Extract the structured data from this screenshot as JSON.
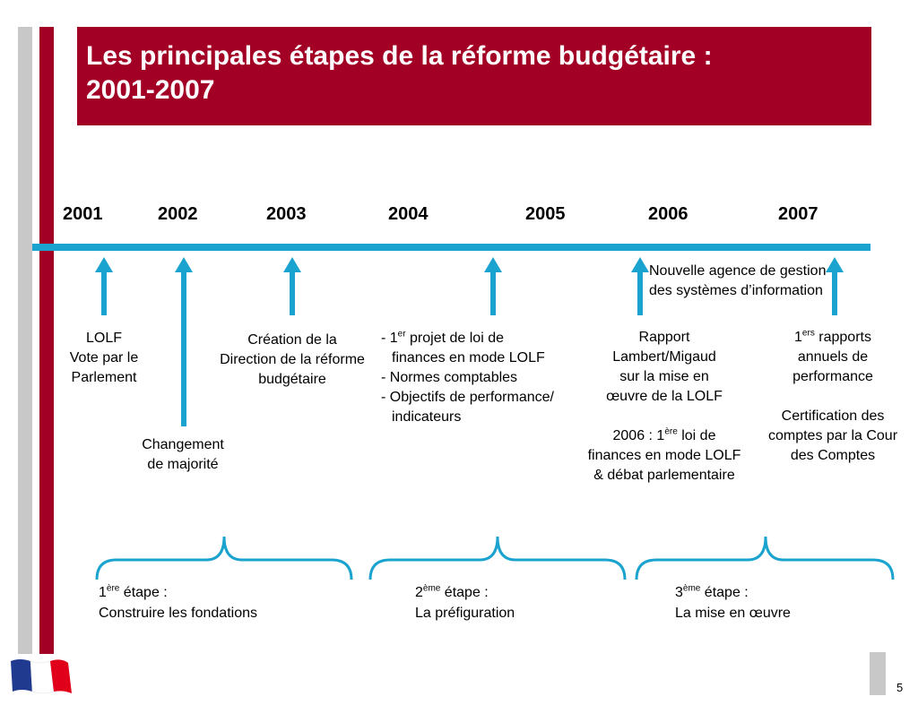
{
  "title": "Les principales étapes de la réforme budgétaire :\n2001-2007",
  "years": [
    "2001",
    "2002",
    "2003",
    "2004",
    "2005",
    "2006",
    "2007"
  ],
  "events": {
    "lolf": [
      "LOLF",
      "Vote par le",
      "Parlement"
    ],
    "majorite": [
      "Changement",
      "de majorité"
    ],
    "direction": [
      "Création de la",
      "Direction de la réforme",
      "budgétaire"
    ],
    "projet": {
      "item1_pre": "- 1",
      "item1_sup": "er",
      "item1_post": " projet de loi de",
      "item1_cont": "finances en mode LOLF",
      "item2": "- Normes comptables",
      "item3": "- Objectifs de performance/",
      "item3_cont": "indicateurs"
    },
    "agence": [
      "Nouvelle agence de gestion",
      "des systèmes d’information"
    ],
    "rapport": [
      "Rapport",
      "Lambert/Migaud",
      "sur la mise en",
      "œuvre de la LOLF"
    ],
    "loi2006": {
      "pre": "2006 : 1",
      "sup": "ère",
      "post": " loi de",
      "line2": "finances en mode LOLF",
      "line3": "& débat parlementaire"
    },
    "rapports2007": {
      "pre": "1",
      "sup": "ers",
      "post": " rapports",
      "line2": "annuels de",
      "line3": "performance"
    },
    "certification": [
      "Certification des",
      "comptes par la Cour",
      "des Comptes"
    ]
  },
  "phases": [
    {
      "num": "1",
      "sup": "ère",
      "suffix": " étape :",
      "desc": "Construire les fondations"
    },
    {
      "num": "2",
      "sup": "ème",
      "suffix": " étape :",
      "desc": "La préfiguration"
    },
    {
      "num": "3",
      "sup": "ème",
      "suffix": " étape :",
      "desc": "La mise en œuvre"
    }
  ],
  "page_number": "5",
  "colors": {
    "accent_red": "#a30026",
    "timeline_blue": "#1ba3cf",
    "side_gray": "#c8c8c8"
  }
}
